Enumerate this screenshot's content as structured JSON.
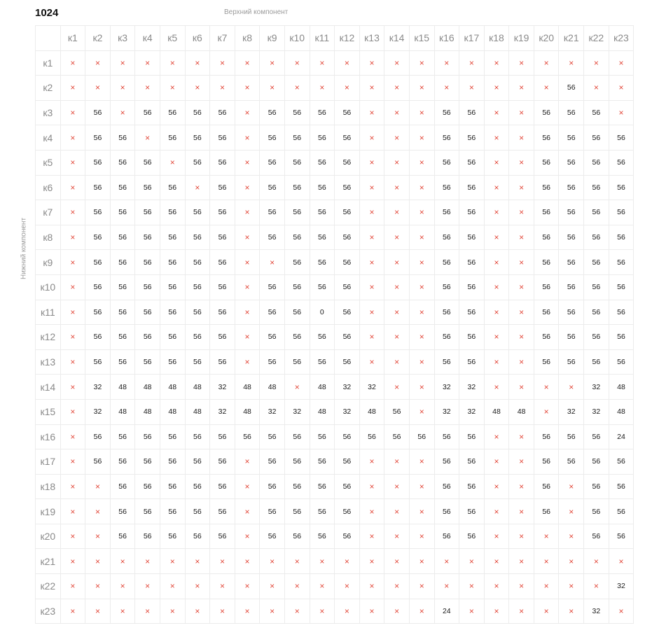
{
  "title": "1024",
  "top_axis_label": "Верхний компонент",
  "left_axis_label": "Нижний компонент",
  "columns": [
    "к1",
    "к2",
    "к3",
    "к4",
    "к5",
    "к6",
    "к7",
    "к8",
    "к9",
    "к10",
    "к11",
    "к12",
    "к13",
    "к14",
    "к15",
    "к16",
    "к17",
    "к18",
    "к19",
    "к20",
    "к21",
    "к22",
    "к23"
  ],
  "rows": [
    {
      "label": "к1",
      "cells": [
        "×",
        "×",
        "×",
        "×",
        "×",
        "×",
        "×",
        "×",
        "×",
        "×",
        "×",
        "×",
        "×",
        "×",
        "×",
        "×",
        "×",
        "×",
        "×",
        "×",
        "×",
        "×",
        "×"
      ]
    },
    {
      "label": "к2",
      "cells": [
        "×",
        "×",
        "×",
        "×",
        "×",
        "×",
        "×",
        "×",
        "×",
        "×",
        "×",
        "×",
        "×",
        "×",
        "×",
        "×",
        "×",
        "×",
        "×",
        "×",
        "56",
        "×",
        "×"
      ]
    },
    {
      "label": "к3",
      "cells": [
        "×",
        "56",
        "×",
        "56",
        "56",
        "56",
        "56",
        "×",
        "56",
        "56",
        "56",
        "56",
        "×",
        "×",
        "×",
        "56",
        "56",
        "×",
        "×",
        "56",
        "56",
        "56",
        "×"
      ]
    },
    {
      "label": "к4",
      "cells": [
        "×",
        "56",
        "56",
        "×",
        "56",
        "56",
        "56",
        "×",
        "56",
        "56",
        "56",
        "56",
        "×",
        "×",
        "×",
        "56",
        "56",
        "×",
        "×",
        "56",
        "56",
        "56",
        "56"
      ]
    },
    {
      "label": "к5",
      "cells": [
        "×",
        "56",
        "56",
        "56",
        "×",
        "56",
        "56",
        "×",
        "56",
        "56",
        "56",
        "56",
        "×",
        "×",
        "×",
        "56",
        "56",
        "×",
        "×",
        "56",
        "56",
        "56",
        "56"
      ]
    },
    {
      "label": "к6",
      "cells": [
        "×",
        "56",
        "56",
        "56",
        "56",
        "×",
        "56",
        "×",
        "56",
        "56",
        "56",
        "56",
        "×",
        "×",
        "×",
        "56",
        "56",
        "×",
        "×",
        "56",
        "56",
        "56",
        "56"
      ]
    },
    {
      "label": "к7",
      "cells": [
        "×",
        "56",
        "56",
        "56",
        "56",
        "56",
        "56",
        "×",
        "56",
        "56",
        "56",
        "56",
        "×",
        "×",
        "×",
        "56",
        "56",
        "×",
        "×",
        "56",
        "56",
        "56",
        "56"
      ]
    },
    {
      "label": "к8",
      "cells": [
        "×",
        "56",
        "56",
        "56",
        "56",
        "56",
        "56",
        "×",
        "56",
        "56",
        "56",
        "56",
        "×",
        "×",
        "×",
        "56",
        "56",
        "×",
        "×",
        "56",
        "56",
        "56",
        "56"
      ]
    },
    {
      "label": "к9",
      "cells": [
        "×",
        "56",
        "56",
        "56",
        "56",
        "56",
        "56",
        "×",
        "×",
        "56",
        "56",
        "56",
        "×",
        "×",
        "×",
        "56",
        "56",
        "×",
        "×",
        "56",
        "56",
        "56",
        "56"
      ]
    },
    {
      "label": "к10",
      "cells": [
        "×",
        "56",
        "56",
        "56",
        "56",
        "56",
        "56",
        "×",
        "56",
        "56",
        "56",
        "56",
        "×",
        "×",
        "×",
        "56",
        "56",
        "×",
        "×",
        "56",
        "56",
        "56",
        "56"
      ]
    },
    {
      "label": "к11",
      "cells": [
        "×",
        "56",
        "56",
        "56",
        "56",
        "56",
        "56",
        "×",
        "56",
        "56",
        "0",
        "56",
        "×",
        "×",
        "×",
        "56",
        "56",
        "×",
        "×",
        "56",
        "56",
        "56",
        "56"
      ]
    },
    {
      "label": "к12",
      "cells": [
        "×",
        "56",
        "56",
        "56",
        "56",
        "56",
        "56",
        "×",
        "56",
        "56",
        "56",
        "56",
        "×",
        "×",
        "×",
        "56",
        "56",
        "×",
        "×",
        "56",
        "56",
        "56",
        "56"
      ]
    },
    {
      "label": "к13",
      "cells": [
        "×",
        "56",
        "56",
        "56",
        "56",
        "56",
        "56",
        "×",
        "56",
        "56",
        "56",
        "56",
        "×",
        "×",
        "×",
        "56",
        "56",
        "×",
        "×",
        "56",
        "56",
        "56",
        "56"
      ]
    },
    {
      "label": "к14",
      "cells": [
        "×",
        "32",
        "48",
        "48",
        "48",
        "48",
        "32",
        "48",
        "48",
        "×",
        "48",
        "32",
        "32",
        "×",
        "×",
        "32",
        "32",
        "×",
        "×",
        "×",
        "×",
        "32",
        "48"
      ]
    },
    {
      "label": "к15",
      "cells": [
        "×",
        "32",
        "48",
        "48",
        "48",
        "48",
        "32",
        "48",
        "32",
        "32",
        "48",
        "32",
        "48",
        "56",
        "×",
        "32",
        "32",
        "48",
        "48",
        "×",
        "32",
        "32",
        "48"
      ]
    },
    {
      "label": "к16",
      "cells": [
        "×",
        "56",
        "56",
        "56",
        "56",
        "56",
        "56",
        "56",
        "56",
        "56",
        "56",
        "56",
        "56",
        "56",
        "56",
        "56",
        "56",
        "×",
        "×",
        "56",
        "56",
        "56",
        "24"
      ]
    },
    {
      "label": "к17",
      "cells": [
        "×",
        "56",
        "56",
        "56",
        "56",
        "56",
        "56",
        "×",
        "56",
        "56",
        "56",
        "56",
        "×",
        "×",
        "×",
        "56",
        "56",
        "×",
        "×",
        "56",
        "56",
        "56",
        "56"
      ]
    },
    {
      "label": "к18",
      "cells": [
        "×",
        "×",
        "56",
        "56",
        "56",
        "56",
        "56",
        "×",
        "56",
        "56",
        "56",
        "56",
        "×",
        "×",
        "×",
        "56",
        "56",
        "×",
        "×",
        "56",
        "×",
        "56",
        "56"
      ]
    },
    {
      "label": "к19",
      "cells": [
        "×",
        "×",
        "56",
        "56",
        "56",
        "56",
        "56",
        "×",
        "56",
        "56",
        "56",
        "56",
        "×",
        "×",
        "×",
        "56",
        "56",
        "×",
        "×",
        "56",
        "×",
        "56",
        "56"
      ]
    },
    {
      "label": "к20",
      "cells": [
        "×",
        "×",
        "56",
        "56",
        "56",
        "56",
        "56",
        "×",
        "56",
        "56",
        "56",
        "56",
        "×",
        "×",
        "×",
        "56",
        "56",
        "×",
        "×",
        "×",
        "×",
        "56",
        "56"
      ]
    },
    {
      "label": "к21",
      "cells": [
        "×",
        "×",
        "×",
        "×",
        "×",
        "×",
        "×",
        "×",
        "×",
        "×",
        "×",
        "×",
        "×",
        "×",
        "×",
        "×",
        "×",
        "×",
        "×",
        "×",
        "×",
        "×",
        "×"
      ]
    },
    {
      "label": "к22",
      "cells": [
        "×",
        "×",
        "×",
        "×",
        "×",
        "×",
        "×",
        "×",
        "×",
        "×",
        "×",
        "×",
        "×",
        "×",
        "×",
        "×",
        "×",
        "×",
        "×",
        "×",
        "×",
        "×",
        "32"
      ]
    },
    {
      "label": "к23",
      "cells": [
        "×",
        "×",
        "×",
        "×",
        "×",
        "×",
        "×",
        "×",
        "×",
        "×",
        "×",
        "×",
        "×",
        "×",
        "×",
        "24",
        "×",
        "×",
        "×",
        "×",
        "×",
        "32",
        "×"
      ]
    }
  ],
  "colors": {
    "cross": "#e2493b",
    "value": "#1a1a1a",
    "header": "#8a8a8a",
    "grid": "#ececec"
  }
}
